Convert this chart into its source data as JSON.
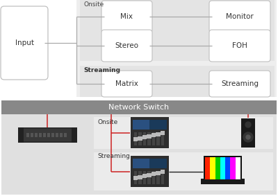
{
  "bg_color": "#ffffff",
  "panel_bg": "#eeeeee",
  "onsite_panel_bg": "#e8e8e8",
  "streaming_panel_bg": "#e8e8e8",
  "box_color": "#ffffff",
  "box_edge_color": "#c0c0c0",
  "input_label": "Input",
  "onsite_label": "Onsite",
  "streaming_label": "Streaming",
  "network_switch_label": "Network Switch",
  "onsite_label2": "Onsite",
  "streaming_label2": "Streaming",
  "line_color": "#aaaaaa",
  "red_line_color": "#cc2222",
  "header_bar_color": "#888888",
  "header_text_color": "#ffffff",
  "label_color": "#444444"
}
